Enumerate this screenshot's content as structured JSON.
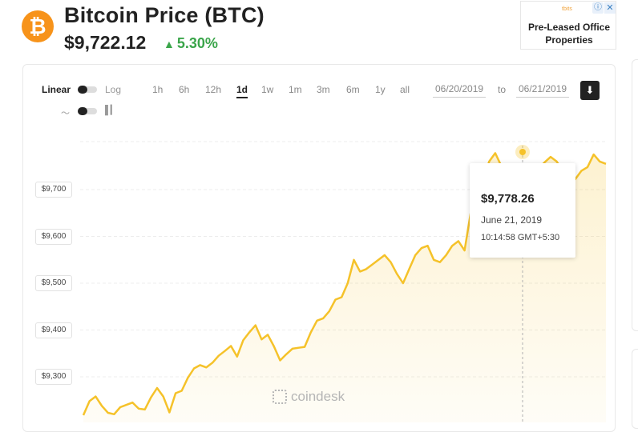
{
  "header": {
    "coin_symbol_glyph": "₿",
    "title": "Bitcoin Price",
    "ticker": "(BTC)",
    "price": "$9,722.12",
    "change_arrow": "▲",
    "change": "5.30%",
    "accent_color": "#f7931a",
    "change_color": "#3aa54a"
  },
  "ad": {
    "brand": "tbits",
    "info_glyph": "ⓘ",
    "close_glyph": "✕",
    "text": "Pre-Leased Office Properties"
  },
  "controls": {
    "scale_linear": "Linear",
    "scale_log": "Log",
    "timeframes": [
      "1h",
      "6h",
      "12h",
      "1d",
      "1w",
      "1m",
      "3m",
      "6m",
      "1y",
      "all"
    ],
    "active_timeframe": "1d",
    "date_from": "06/20/2019",
    "date_to_label": "to",
    "date_to": "06/21/2019",
    "download_glyph": "⬇",
    "line_chart_icon": "line-chart-icon",
    "bar_chart_icon": "bar-chart-icon"
  },
  "tooltip": {
    "price": "$9,778.26",
    "date": "June 21, 2019",
    "time": "10:14:58 GMT+5:30"
  },
  "watermark": "coindesk",
  "chart_data": {
    "type": "area",
    "ylabel": "",
    "xlabel": "",
    "y_ticks": [
      "$9,700",
      "$9,600",
      "$9,500",
      "$9,400",
      "$9,300"
    ],
    "y_tick_values": [
      9700,
      9600,
      9500,
      9400,
      9300
    ],
    "ylim": [
      9205,
      9810
    ],
    "line_color": "#f5c22a",
    "grid": true,
    "series": [
      {
        "values": [
          9218,
          9248,
          9258,
          9238,
          9223,
          9220,
          9235,
          9240,
          9245,
          9232,
          9230,
          9256,
          9276,
          9258,
          9224,
          9265,
          9270,
          9298,
          9318,
          9325,
          9320,
          9330,
          9345,
          9355,
          9366,
          9343,
          9378,
          9395,
          9410,
          9380,
          9390,
          9365,
          9335,
          9348,
          9360,
          9362,
          9364,
          9395,
          9420,
          9425,
          9440,
          9465,
          9470,
          9500,
          9550,
          9525,
          9530,
          9540,
          9550,
          9560,
          9545,
          9520,
          9500,
          9530,
          9560,
          9575,
          9580,
          9550,
          9545,
          9560,
          9580,
          9590,
          9570,
          9650,
          9680,
          9720,
          9760,
          9778,
          9750,
          9730,
          9720,
          9705,
          9715,
          9730,
          9745,
          9758,
          9770,
          9760,
          9740,
          9718,
          9722,
          9740,
          9748,
          9775,
          9760,
          9755
        ]
      }
    ],
    "highlight_index": 66
  }
}
